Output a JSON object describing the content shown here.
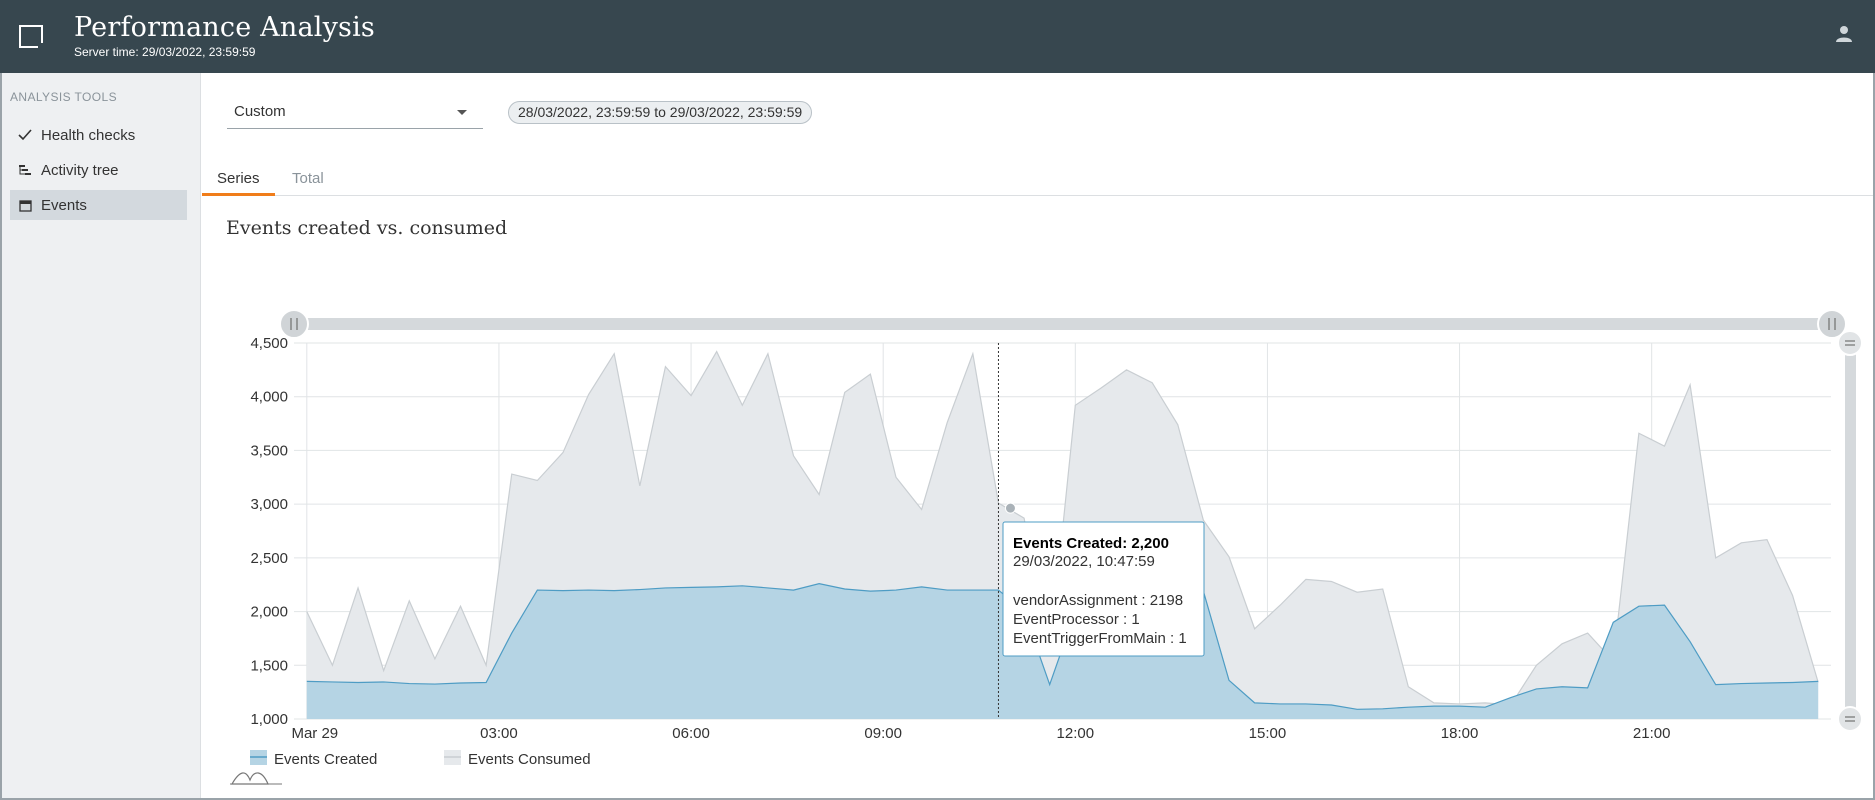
{
  "header": {
    "title": "Performance Analysis",
    "server_time": "Server time: 29/03/2022, 23:59:59",
    "user_icon": "user-icon",
    "bg_color": "#37474f"
  },
  "sidebar": {
    "heading": "ANALYSIS TOOLS",
    "items": [
      {
        "label": "Health checks",
        "icon": "check-icon",
        "active": false
      },
      {
        "label": "Activity tree",
        "icon": "tree-icon",
        "active": false
      },
      {
        "label": "Events",
        "icon": "calendar-icon",
        "active": true
      }
    ]
  },
  "filters": {
    "range_select": "Custom",
    "range_chip": "28/03/2022, 23:59:59 to 29/03/2022, 23:59:59"
  },
  "tabs": [
    {
      "label": "Series",
      "active": true
    },
    {
      "label": "Total",
      "active": false
    }
  ],
  "accent_color": "#f07d1a",
  "chart_data": {
    "type": "area",
    "title": "Events created vs. consumed",
    "x_tick_labels": [
      "Mar 29",
      "03:00",
      "06:00",
      "09:00",
      "12:00",
      "15:00",
      "18:00",
      "21:00"
    ],
    "x_tick_hours": [
      0,
      3,
      6,
      9,
      12,
      15,
      18,
      21
    ],
    "xlim_hours": [
      -0.2,
      23.8
    ],
    "ylim": [
      1000,
      4500
    ],
    "y_ticks": [
      "1,000",
      "1,500",
      "2,000",
      "2,500",
      "3,000",
      "3,500",
      "4,000",
      "4,500"
    ],
    "grid": true,
    "legend_position": "bottom-left",
    "x_hours": [
      0,
      0.4,
      0.8,
      1.2,
      1.6,
      2,
      2.4,
      2.8,
      3.2,
      3.6,
      4,
      4.4,
      4.8,
      5.2,
      5.6,
      6,
      6.4,
      6.8,
      7.2,
      7.6,
      8,
      8.4,
      8.8,
      9.2,
      9.6,
      10,
      10.4,
      10.8,
      11.2,
      11.6,
      12,
      12.4,
      12.8,
      13.2,
      13.6,
      14,
      14.4,
      14.8,
      15.2,
      15.6,
      16,
      16.4,
      16.8,
      17.2,
      17.6,
      18,
      18.4,
      18.8,
      19.2,
      19.6,
      20,
      20.4,
      20.8,
      21.2,
      21.6,
      22,
      22.4,
      22.8,
      23.2,
      23.6
    ],
    "series": [
      {
        "name": "Events Consumed",
        "color": "#c9ced2",
        "fill": "#e6e9ec",
        "values": [
          2000,
          1500,
          2220,
          1450,
          2100,
          1560,
          2050,
          1500,
          3280,
          3220,
          3480,
          4020,
          4400,
          3170,
          4280,
          4010,
          4420,
          3920,
          4400,
          3450,
          3090,
          4040,
          4210,
          3250,
          2950,
          3760,
          4400,
          3010,
          2870,
          1600,
          3920,
          4080,
          4250,
          4130,
          3740,
          2850,
          2510,
          1840,
          2060,
          2300,
          2280,
          2180,
          2210,
          1300,
          1150,
          1140,
          1150,
          1130,
          1500,
          1700,
          1800,
          1540,
          3660,
          3540,
          4110,
          2500,
          2640,
          2670,
          2150,
          1340
        ]
      },
      {
        "name": "Events Created",
        "color": "#4e9cc4",
        "fill": "#b5d4e4",
        "values": [
          1350,
          1345,
          1340,
          1345,
          1330,
          1325,
          1335,
          1340,
          1800,
          2200,
          2195,
          2200,
          2195,
          2205,
          2220,
          2225,
          2230,
          2240,
          2220,
          2200,
          2260,
          2210,
          2190,
          2200,
          2230,
          2200,
          2200,
          2200,
          2000,
          1320,
          2000,
          2200,
          2230,
          2200,
          2210,
          2190,
          1360,
          1150,
          1140,
          1140,
          1130,
          1090,
          1095,
          1110,
          1120,
          1120,
          1110,
          1200,
          1280,
          1300,
          1290,
          1900,
          2050,
          2060,
          1720,
          1320,
          1330,
          1335,
          1340,
          1350
        ]
      }
    ],
    "tooltip": {
      "title": "Events Created: 2,200",
      "timestamp": "29/03/2022, 10:47:59",
      "hover_hour": 10.8,
      "hover_value": 2200,
      "consumed_marker_value": 3000,
      "lines": [
        "vendorAssignment : 2198",
        "EventProcessor : 1",
        "EventTriggerFromMain : 1"
      ]
    },
    "legend": [
      "Events Created",
      "Events Consumed"
    ]
  }
}
